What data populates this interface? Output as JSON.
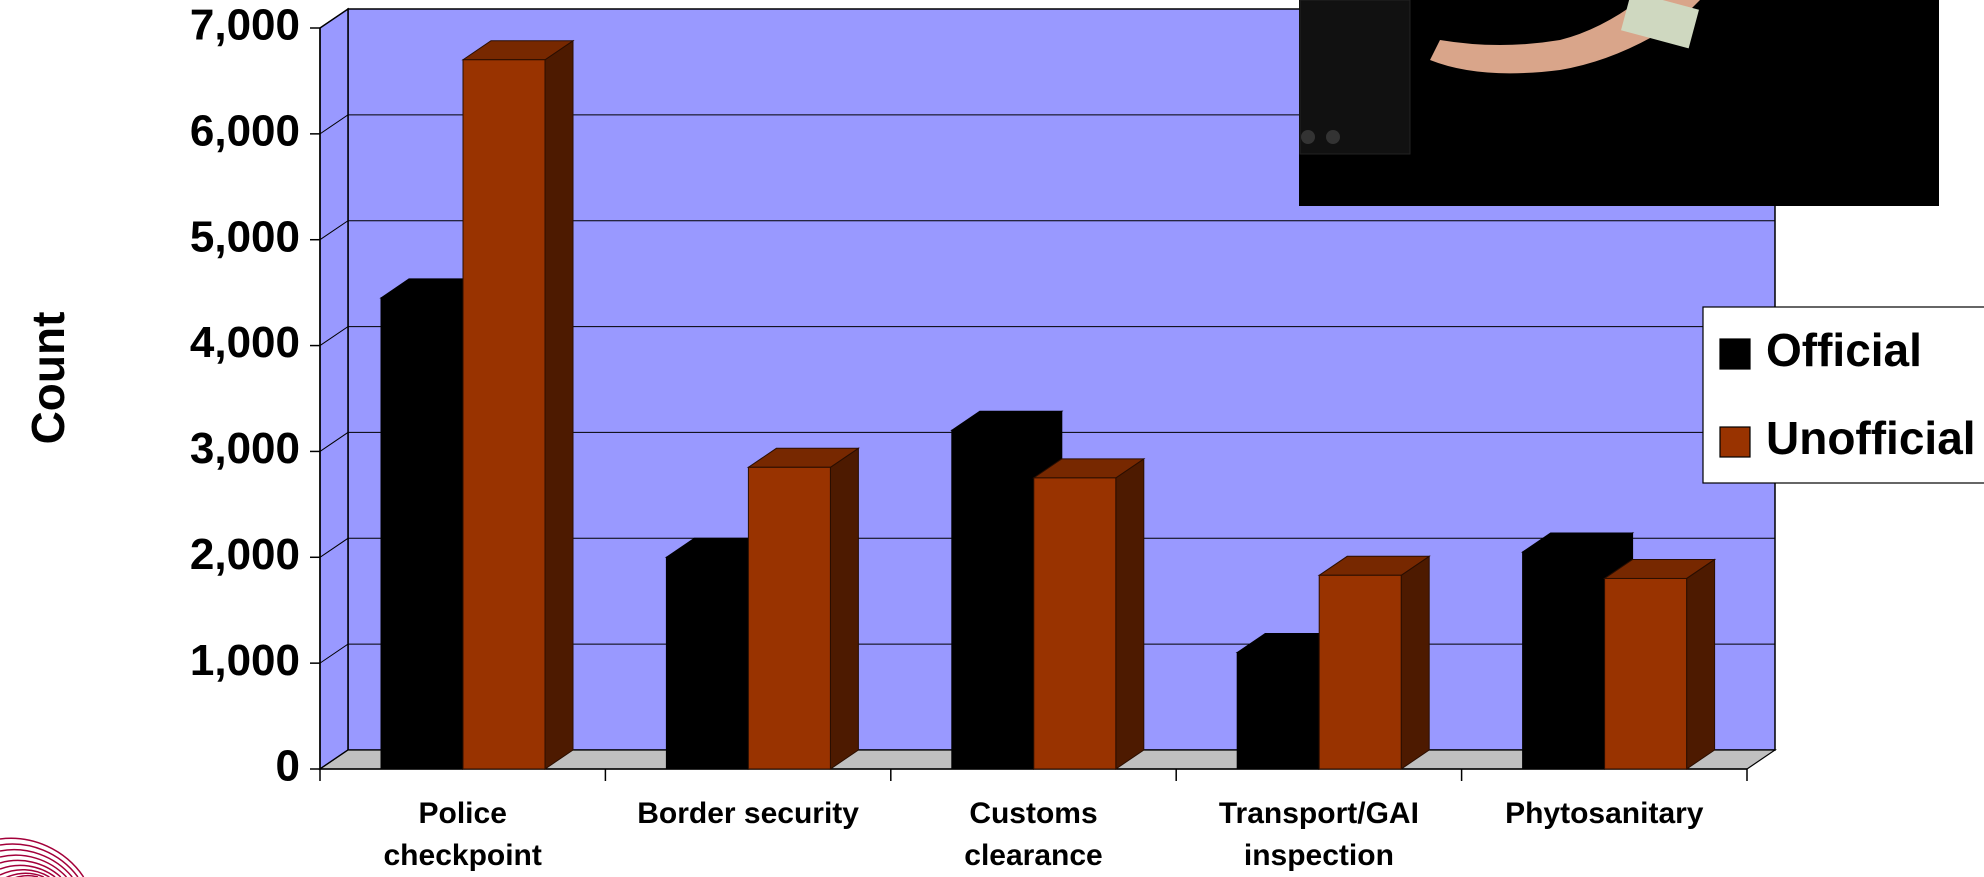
{
  "chart_data": {
    "type": "bar3d",
    "y_label": "Count",
    "categories": [
      "Police checkpoint",
      "Border security",
      "Customs clearance",
      "Transport/GAI inspection",
      "Phytosanitary"
    ],
    "series": [
      {
        "name": "Official",
        "color": "#000000",
        "values": [
          4450,
          2000,
          3200,
          1100,
          2050
        ]
      },
      {
        "name": "Unofficial",
        "color": "#993300",
        "values": [
          6700,
          2850,
          2750,
          1830,
          1800
        ]
      }
    ],
    "ylim": [
      0,
      7000
    ],
    "yticks": [
      0,
      {
        "value": 1000,
        "label": "1,000"
      },
      {
        "value": 2000,
        "label": "2,000"
      },
      {
        "value": 3000,
        "label": "3,000"
      },
      {
        "value": 4000,
        "label": "4,000"
      },
      {
        "value": 5000,
        "label": "5,000"
      },
      {
        "value": 6000,
        "label": "6,000"
      },
      {
        "value": 7000,
        "label": "7,000"
      }
    ],
    "grid": true,
    "wall_color": "#9999ff",
    "legend": "right"
  }
}
